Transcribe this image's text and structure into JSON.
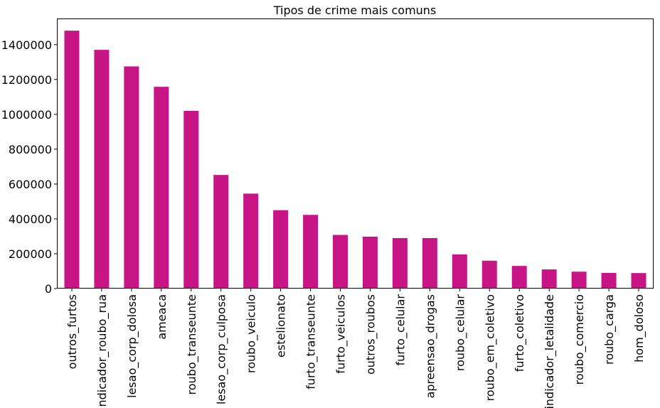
{
  "chart_data": {
    "type": "bar",
    "title": "Tipos de crime mais comuns",
    "xlabel": "",
    "ylabel": "",
    "ylim": [
      0,
      1550000
    ],
    "yticks": [
      0,
      200000,
      400000,
      600000,
      800000,
      1000000,
      1200000,
      1400000
    ],
    "ytick_labels": [
      "0",
      "200000",
      "400000",
      "600000",
      "800000",
      "1000000",
      "1200000",
      "1400000"
    ],
    "grid": false,
    "bar_color": "#c71585",
    "categories": [
      "outros_furtos",
      "indicador_roubo_rua",
      "lesao_corp_dolosa",
      "ameaca",
      "roubo_transeunte",
      "lesao_corp_culposa",
      "roubo_veiculo",
      "estelionato",
      "furto_transeunte",
      "furto_veiculos",
      "outros_roubos",
      "furto_celular",
      "apreensao_drogas",
      "roubo_celular",
      "roubo_em_coletivo",
      "furto_coletivo",
      "indicador_letalidade",
      "roubo_comercio",
      "roubo_carga",
      "hom_doloso"
    ],
    "values": [
      1480000,
      1370000,
      1275000,
      1158000,
      1020000,
      652000,
      545000,
      450000,
      423000,
      308000,
      298000,
      290000,
      290000,
      196000,
      160000,
      130000,
      110000,
      97000,
      90000,
      89000
    ]
  }
}
